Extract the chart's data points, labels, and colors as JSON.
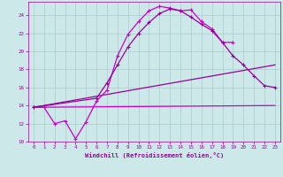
{
  "bg_color": "#cce8e8",
  "grid_color": "#aacccc",
  "text_color": "#990099",
  "xlim": [
    -0.5,
    23.5
  ],
  "ylim": [
    10,
    25.5
  ],
  "yticks": [
    10,
    12,
    14,
    16,
    18,
    20,
    22,
    24
  ],
  "xticks": [
    0,
    1,
    2,
    3,
    4,
    5,
    6,
    7,
    8,
    9,
    10,
    11,
    12,
    13,
    14,
    15,
    16,
    17,
    18,
    19,
    20,
    21,
    22,
    23
  ],
  "xlabel": "Windchill (Refroidissement éolien,°C)",
  "curve1_x": [
    0,
    1,
    2,
    3,
    4,
    5,
    6,
    7,
    8,
    9,
    10,
    11,
    12,
    13,
    14,
    15,
    16,
    17,
    18,
    19
  ],
  "curve1_y": [
    13.8,
    13.8,
    12.0,
    12.3,
    10.3,
    12.2,
    14.5,
    15.7,
    19.5,
    21.9,
    23.3,
    24.5,
    25.0,
    24.8,
    24.5,
    24.6,
    23.3,
    22.5,
    21.0,
    21.0
  ],
  "curve1_color": "#cc00cc",
  "curve2_x": [
    0,
    6,
    7,
    8,
    9,
    10,
    11,
    12,
    13,
    14,
    15,
    16,
    17,
    18,
    19,
    20,
    21,
    22,
    23
  ],
  "curve2_y": [
    13.8,
    14.8,
    16.5,
    18.5,
    20.5,
    22.0,
    23.2,
    24.2,
    24.7,
    24.5,
    23.8,
    23.0,
    22.3,
    21.0,
    19.5,
    18.5,
    17.3,
    16.2,
    16.0
  ],
  "curve2_color": "#990099",
  "line1_x": [
    0,
    23
  ],
  "line1_y": [
    13.8,
    18.5
  ],
  "line1_color": "#990099",
  "line2_x": [
    0,
    23
  ],
  "line2_y": [
    13.8,
    14.0
  ],
  "line2_color": "#cc00cc"
}
